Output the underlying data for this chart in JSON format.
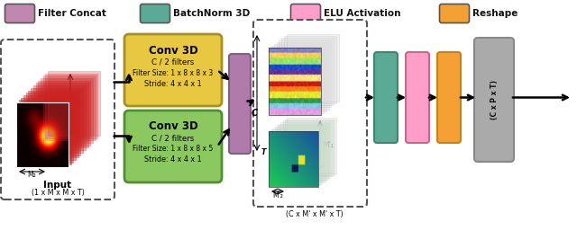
{
  "legend_items": [
    {
      "label": "Filter Concat",
      "color": "#C088B0"
    },
    {
      "label": "BatchNorm 3D",
      "color": "#5BAA96"
    },
    {
      "label": "ELU Activation",
      "color": "#FF9EC8"
    },
    {
      "label": "Reshape",
      "color": "#F5A033"
    }
  ],
  "conv3d_top_color": "#E8C840",
  "conv3d_top_border": "#A89020",
  "conv3d_bot_color": "#8CC860",
  "conv3d_bot_border": "#509030",
  "filter_concat_color": "#B07AAA",
  "filter_concat_border": "#806080",
  "batchnorm_color": "#5BAA96",
  "batchnorm_border": "#3A8870",
  "elu_color": "#FF9EC8",
  "elu_border": "#CC6688",
  "reshape_color": "#F5A033",
  "reshape_border": "#CC8010",
  "output_box_color": "#AAAAAA",
  "output_box_border": "#888888"
}
